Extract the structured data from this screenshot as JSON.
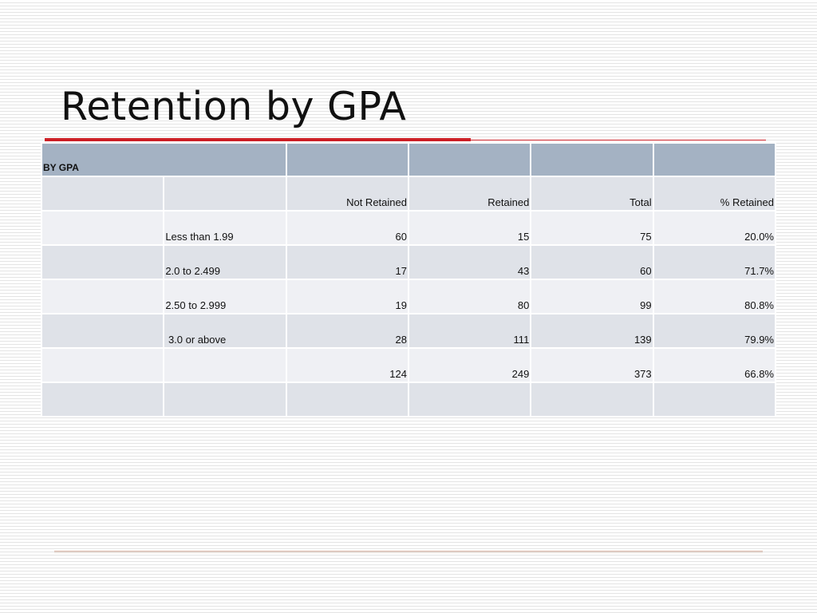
{
  "slide": {
    "title": "Retention by GPA"
  },
  "table": {
    "section_label": "BY GPA",
    "columns": [
      "",
      "",
      "Not Retained",
      "Retained",
      "Total",
      "% Retained"
    ],
    "rows": [
      {
        "label": "Less than 1.99",
        "not_retained": "60",
        "retained": "15",
        "total": "75",
        "pct": "20.0%"
      },
      {
        "label": "2.0 to 2.499",
        "not_retained": "17",
        "retained": "43",
        "total": "60",
        "pct": "71.7%"
      },
      {
        "label": "2.50 to 2.999",
        "not_retained": "19",
        "retained": "80",
        "total": "99",
        "pct": "80.8%"
      },
      {
        "label": " 3.0 or above",
        "not_retained": "28",
        "retained": "111",
        "total": "139",
        "pct": "79.9%"
      },
      {
        "label": "",
        "not_retained": "124",
        "retained": "249",
        "total": "373",
        "pct": "66.8%"
      }
    ]
  },
  "colors": {
    "accent_red": "#cc1f26",
    "header_fill": "#a4b2c3",
    "row_dark": "#dfe2e8",
    "row_light": "#eff0f4"
  }
}
